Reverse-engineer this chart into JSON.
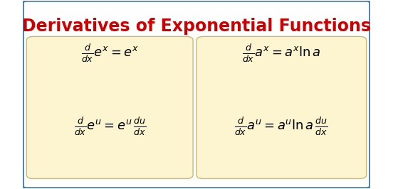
{
  "title": "Derivatives of Exponential Functions",
  "title_color": "#cc0000",
  "title_fontsize": 17,
  "bg_color": "#ffffff",
  "box_color": "#fdf5d0",
  "box_edge_color": "#c8b870",
  "outer_border_color": "#4a7db5",
  "formula_color": "#000000",
  "formulas_left": [
    "\\frac{d}{dx}e^{x} = e^{x}",
    "\\frac{d}{dx}e^{u} = e^{u}\\,\\frac{du}{dx}"
  ],
  "formulas_right": [
    "\\frac{d}{dx}a^{x} = a^{x}\\ln a",
    "\\frac{d}{dx}a^{u} = a^{u}\\ln a\\,\\frac{du}{dx}"
  ]
}
